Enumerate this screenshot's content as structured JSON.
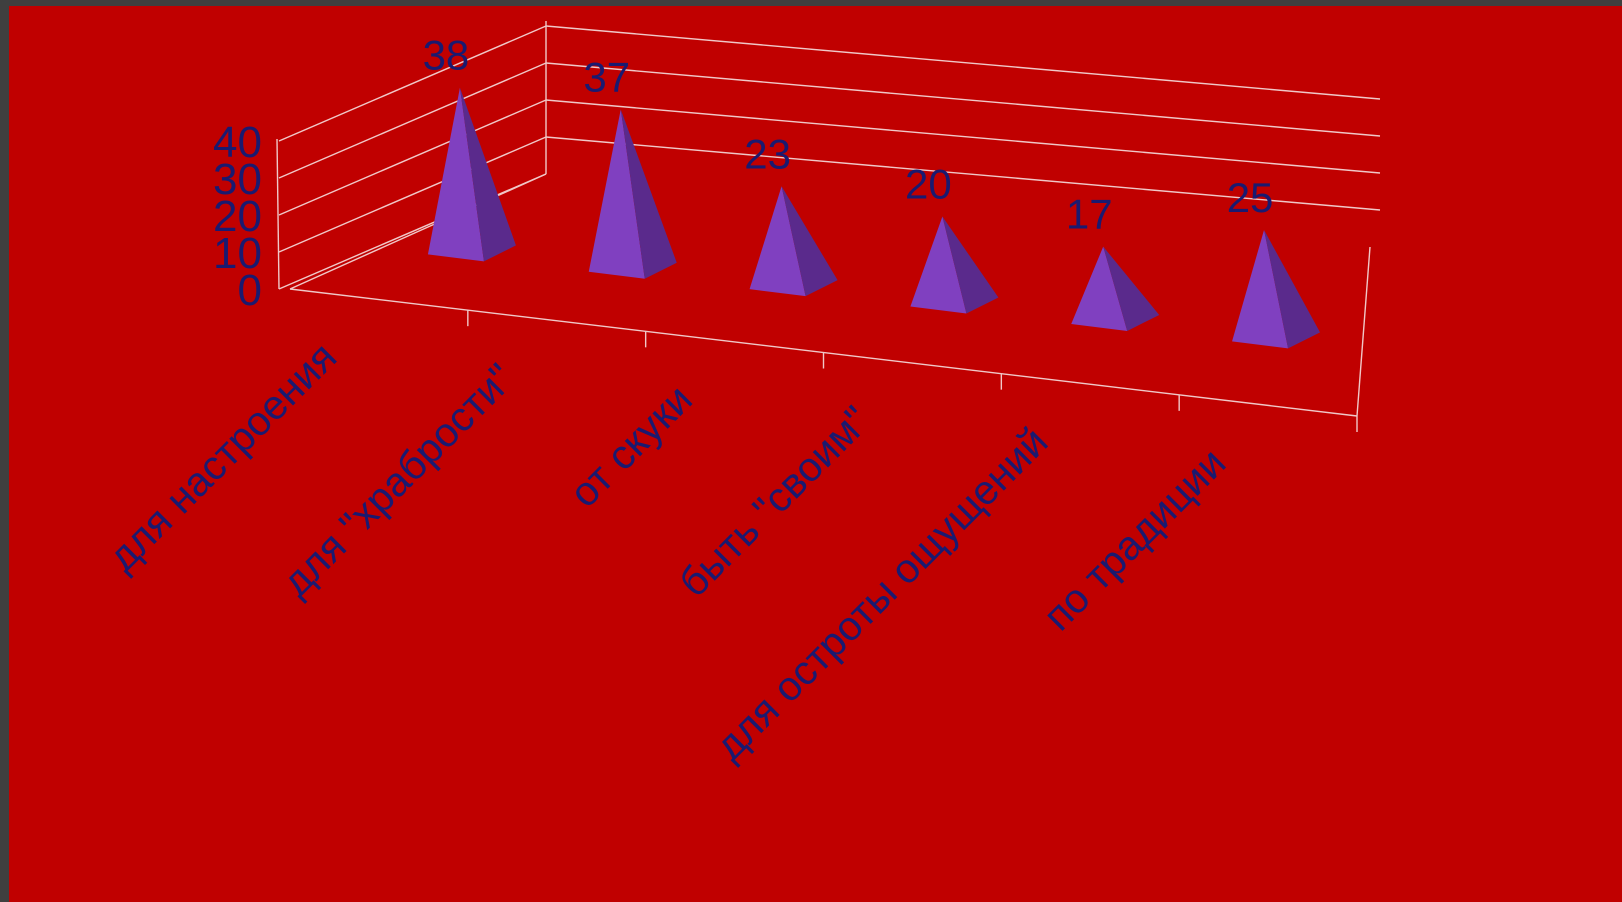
{
  "chart_data": {
    "type": "bar",
    "shape": "pyramid-3d",
    "categories": [
      "для настроения",
      "для \"храбрости\"",
      "от скуки",
      "быть \"своим\"",
      "для остроты ощущений",
      "по традиции"
    ],
    "values": [
      38,
      37,
      23,
      20,
      17,
      25
    ],
    "ylim": [
      0,
      40
    ],
    "yticks": [
      0,
      10,
      20,
      30,
      40
    ],
    "grid": true,
    "data_labels": true,
    "legend": "none"
  },
  "colors": {
    "background": "#c00000",
    "pyramid_front": "#8040c0",
    "pyramid_side": "#5a2a8c",
    "text": "#1a1a70",
    "grid": "#f0c8c8"
  }
}
